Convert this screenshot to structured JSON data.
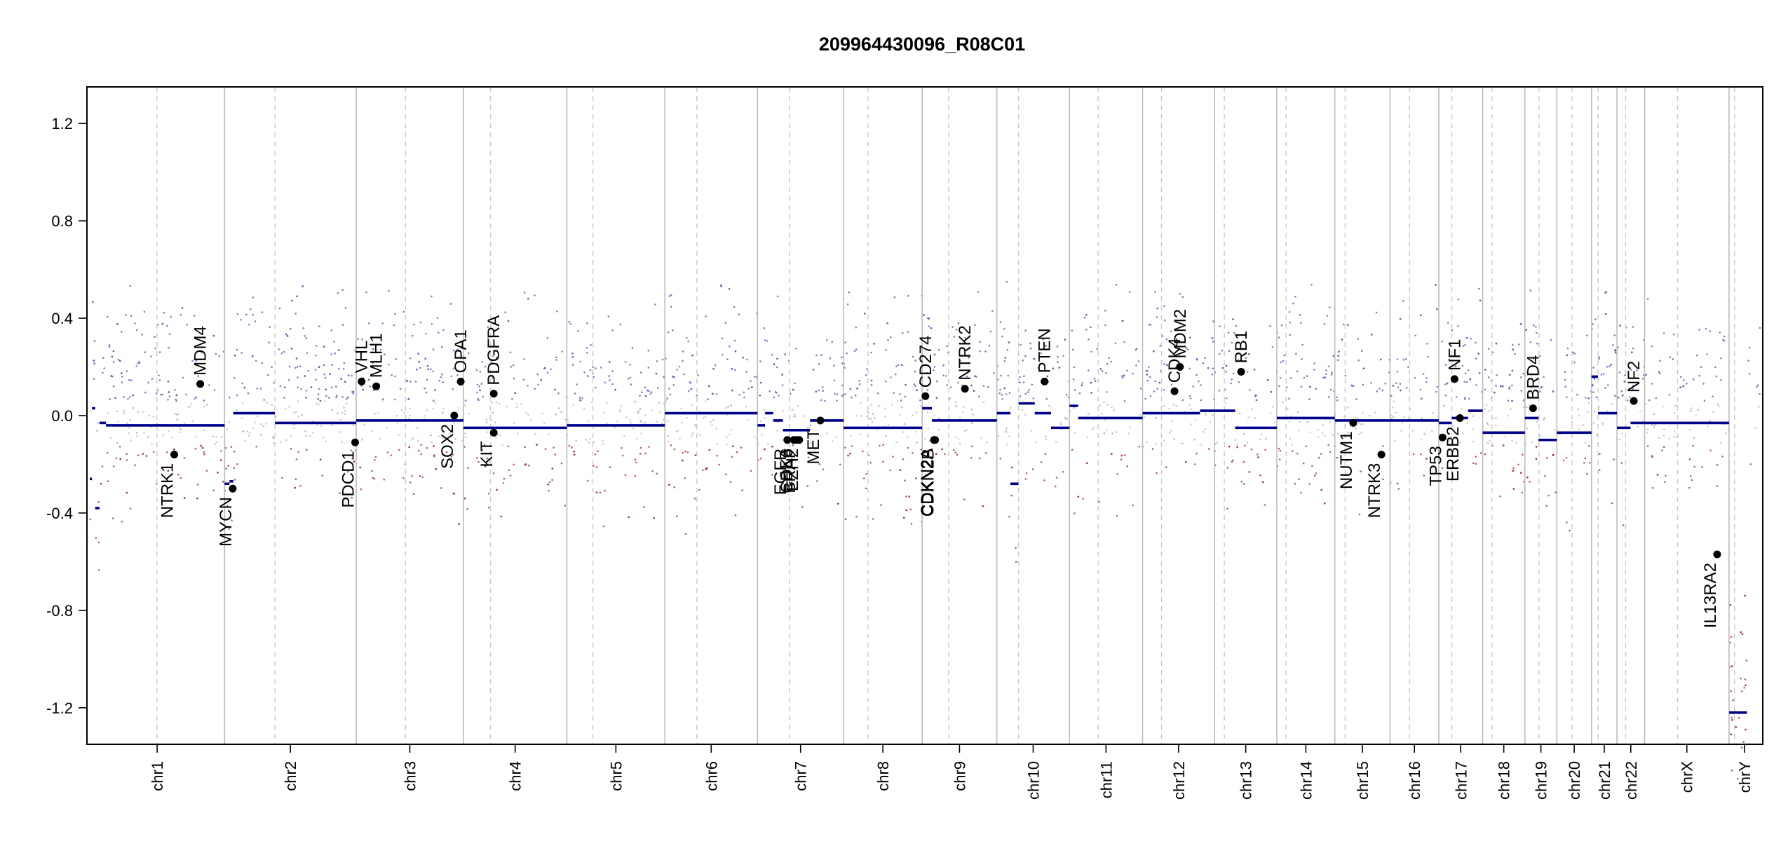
{
  "chart_data": {
    "type": "scatter",
    "title": "209964430096_R08C01",
    "xlabel": "",
    "ylabel": "",
    "ylim": [
      -1.35,
      1.35
    ],
    "y_ticks": [
      "1.2",
      "0.8",
      "0.4",
      "0.0",
      "-0.4",
      "-0.8",
      "-1.2"
    ],
    "y_tick_values": [
      1.2,
      0.8,
      0.4,
      0.0,
      -0.4,
      -0.8,
      -1.2
    ],
    "chromosomes": [
      {
        "name": "chr1",
        "start": 0,
        "end": 249,
        "centromere": 124
      },
      {
        "name": "chr2",
        "start": 249,
        "end": 492,
        "centromere": 342
      },
      {
        "name": "chr3",
        "start": 492,
        "end": 690,
        "centromere": 583
      },
      {
        "name": "chr4",
        "start": 690,
        "end": 881,
        "centromere": 740
      },
      {
        "name": "chr5",
        "start": 881,
        "end": 1062,
        "centromere": 929
      },
      {
        "name": "chr6",
        "start": 1062,
        "end": 1233,
        "centromere": 1121
      },
      {
        "name": "chr7",
        "start": 1233,
        "end": 1392,
        "centromere": 1292
      },
      {
        "name": "chr8",
        "start": 1392,
        "end": 1537,
        "centromere": 1437
      },
      {
        "name": "chr9",
        "start": 1537,
        "end": 1675,
        "centromere": 1586
      },
      {
        "name": "chr10",
        "start": 1675,
        "end": 1809,
        "centromere": 1715
      },
      {
        "name": "chr11",
        "start": 1809,
        "end": 1944,
        "centromere": 1862
      },
      {
        "name": "chr12",
        "start": 1944,
        "end": 2077,
        "centromere": 1979
      },
      {
        "name": "chr13",
        "start": 2077,
        "end": 2192,
        "centromere": 2095
      },
      {
        "name": "chr14",
        "start": 2192,
        "end": 2299,
        "centromere": 2209
      },
      {
        "name": "chr15",
        "start": 2299,
        "end": 2401,
        "centromere": 2318
      },
      {
        "name": "chr16",
        "start": 2401,
        "end": 2491,
        "centromere": 2437
      },
      {
        "name": "chr17",
        "start": 2491,
        "end": 2572,
        "centromere": 2515
      },
      {
        "name": "chr18",
        "start": 2572,
        "end": 2650,
        "centromere": 2589
      },
      {
        "name": "chr19",
        "start": 2650,
        "end": 2709,
        "centromere": 2676
      },
      {
        "name": "chr20",
        "start": 2709,
        "end": 2773,
        "centromere": 2737
      },
      {
        "name": "chr21",
        "start": 2773,
        "end": 2820,
        "centromere": 2785
      },
      {
        "name": "chr22",
        "start": 2820,
        "end": 2871,
        "centromere": 2836
      },
      {
        "name": "chrX",
        "start": 2871,
        "end": 3027,
        "centromere": 2932
      },
      {
        "name": "chrY",
        "start": 3027,
        "end": 3084,
        "centromere": 3037
      }
    ],
    "segments": [
      {
        "start": 0,
        "end": 4,
        "value": -0.26
      },
      {
        "start": 4,
        "end": 10,
        "value": 0.03
      },
      {
        "start": 10,
        "end": 18,
        "value": -0.38
      },
      {
        "start": 18,
        "end": 30,
        "value": -0.03
      },
      {
        "start": 30,
        "end": 40,
        "value": -0.04
      },
      {
        "start": 40,
        "end": 249,
        "value": -0.04
      },
      {
        "start": 249,
        "end": 258,
        "value": -0.28
      },
      {
        "start": 258,
        "end": 265,
        "value": -0.27
      },
      {
        "start": 265,
        "end": 342,
        "value": 0.01
      },
      {
        "start": 342,
        "end": 492,
        "value": -0.03
      },
      {
        "start": 492,
        "end": 690,
        "value": -0.02
      },
      {
        "start": 690,
        "end": 881,
        "value": -0.05
      },
      {
        "start": 881,
        "end": 1062,
        "value": -0.04
      },
      {
        "start": 1062,
        "end": 1233,
        "value": 0.01
      },
      {
        "start": 1233,
        "end": 1247,
        "value": -0.04
      },
      {
        "start": 1247,
        "end": 1262,
        "value": 0.01
      },
      {
        "start": 1262,
        "end": 1280,
        "value": -0.02
      },
      {
        "start": 1280,
        "end": 1330,
        "value": -0.06
      },
      {
        "start": 1330,
        "end": 1392,
        "value": -0.02
      },
      {
        "start": 1392,
        "end": 1537,
        "value": -0.05
      },
      {
        "start": 1537,
        "end": 1555,
        "value": 0.03
      },
      {
        "start": 1555,
        "end": 1675,
        "value": -0.02
      },
      {
        "start": 1675,
        "end": 1700,
        "value": 0.01
      },
      {
        "start": 1700,
        "end": 1715,
        "value": -0.28
      },
      {
        "start": 1715,
        "end": 1745,
        "value": 0.05
      },
      {
        "start": 1745,
        "end": 1775,
        "value": 0.01
      },
      {
        "start": 1775,
        "end": 1809,
        "value": -0.05
      },
      {
        "start": 1809,
        "end": 1825,
        "value": 0.04
      },
      {
        "start": 1825,
        "end": 1944,
        "value": -0.01
      },
      {
        "start": 1944,
        "end": 2050,
        "value": 0.01
      },
      {
        "start": 2050,
        "end": 2077,
        "value": 0.02
      },
      {
        "start": 2077,
        "end": 2115,
        "value": 0.02
      },
      {
        "start": 2115,
        "end": 2192,
        "value": -0.05
      },
      {
        "start": 2192,
        "end": 2299,
        "value": -0.01
      },
      {
        "start": 2299,
        "end": 2401,
        "value": -0.02
      },
      {
        "start": 2401,
        "end": 2491,
        "value": -0.02
      },
      {
        "start": 2491,
        "end": 2515,
        "value": -0.03
      },
      {
        "start": 2515,
        "end": 2545,
        "value": -0.01
      },
      {
        "start": 2545,
        "end": 2572,
        "value": 0.02
      },
      {
        "start": 2572,
        "end": 2650,
        "value": -0.07
      },
      {
        "start": 2650,
        "end": 2675,
        "value": -0.01
      },
      {
        "start": 2675,
        "end": 2709,
        "value": -0.1
      },
      {
        "start": 2709,
        "end": 2773,
        "value": -0.07
      },
      {
        "start": 2773,
        "end": 2785,
        "value": 0.16
      },
      {
        "start": 2785,
        "end": 2820,
        "value": 0.01
      },
      {
        "start": 2820,
        "end": 2845,
        "value": -0.05
      },
      {
        "start": 2845,
        "end": 3027,
        "value": -0.03
      },
      {
        "start": 3027,
        "end": 3060,
        "value": -1.22
      }
    ],
    "genes": [
      {
        "name": "NTRK1",
        "pos": 156,
        "value": -0.16,
        "side": "below"
      },
      {
        "name": "MDM4",
        "pos": 204,
        "value": 0.13,
        "side": "above"
      },
      {
        "name": "MYCN",
        "pos": 264,
        "value": -0.3,
        "side": "below"
      },
      {
        "name": "PDCD1",
        "pos": 490,
        "value": -0.11,
        "side": "below"
      },
      {
        "name": "VHL",
        "pos": 502,
        "value": 0.14,
        "side": "above"
      },
      {
        "name": "MLH1",
        "pos": 529,
        "value": 0.12,
        "side": "above"
      },
      {
        "name": "SOX2",
        "pos": 673,
        "value": 0.0,
        "side": "below"
      },
      {
        "name": "OPA1",
        "pos": 685,
        "value": 0.14,
        "side": "above"
      },
      {
        "name": "KIT",
        "pos": 746,
        "value": -0.07,
        "side": "below"
      },
      {
        "name": "PDGFRA",
        "pos": 746,
        "value": 0.09,
        "side": "above"
      },
      {
        "name": "EGFR",
        "pos": 1288,
        "value": -0.1,
        "side": "below"
      },
      {
        "name": "CDK6",
        "pos": 1300,
        "value": -0.1,
        "side": "below"
      },
      {
        "name": "BRAF",
        "pos": 1305,
        "value": -0.1,
        "side": "below"
      },
      {
        "name": "EZH2",
        "pos": 1310,
        "value": -0.1,
        "side": "below"
      },
      {
        "name": "MET",
        "pos": 1349,
        "value": -0.02,
        "side": "below"
      },
      {
        "name": "CD274",
        "pos": 1543,
        "value": 0.08,
        "side": "above"
      },
      {
        "name": "CDKN2A",
        "pos": 1559,
        "value": -0.1,
        "side": "below"
      },
      {
        "name": "CDKN2B",
        "pos": 1561,
        "value": -0.1,
        "side": "below"
      },
      {
        "name": "NTRK2",
        "pos": 1616,
        "value": 0.11,
        "side": "above"
      },
      {
        "name": "PTEN",
        "pos": 1763,
        "value": 0.14,
        "side": "above"
      },
      {
        "name": "CDK4",
        "pos": 2003,
        "value": 0.1,
        "side": "above"
      },
      {
        "name": "MDM2",
        "pos": 2013,
        "value": 0.2,
        "side": "above"
      },
      {
        "name": "RB1",
        "pos": 2126,
        "value": 0.18,
        "side": "above"
      },
      {
        "name": "NUTM1",
        "pos": 2333,
        "value": -0.03,
        "side": "below"
      },
      {
        "name": "NTRK3",
        "pos": 2385,
        "value": -0.16,
        "side": "below"
      },
      {
        "name": "TP53",
        "pos": 2498,
        "value": -0.09,
        "side": "below"
      },
      {
        "name": "NF1",
        "pos": 2520,
        "value": 0.15,
        "side": "above"
      },
      {
        "name": "ERBB2",
        "pos": 2530,
        "value": -0.01,
        "side": "below"
      },
      {
        "name": "BRD4",
        "pos": 2665,
        "value": 0.03,
        "side": "above"
      },
      {
        "name": "NF2",
        "pos": 2851,
        "value": 0.06,
        "side": "above"
      },
      {
        "name": "IL13RA2",
        "pos": 3005,
        "value": -0.57,
        "side": "below"
      }
    ]
  },
  "colors": {
    "segment": "#00008B",
    "gain": "#4A5AB0",
    "loss": "#A52A2A",
    "neutral": "#B8B8CC",
    "gene_point": "#000000",
    "boundary": "#BBBBBB",
    "centromere": "#C8C8C8"
  }
}
